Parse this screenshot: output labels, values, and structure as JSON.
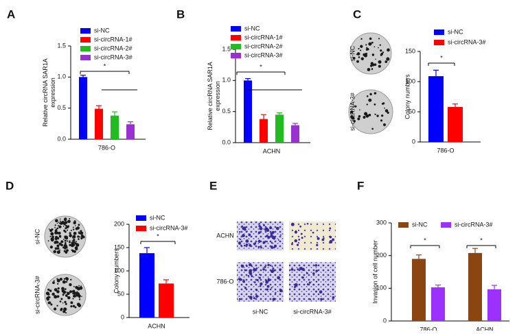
{
  "chart_data": [
    {
      "type": "bar",
      "panel": "A",
      "y_label": [
        "Relative circRNA SAR1A",
        "expression"
      ],
      "categories": [
        "786-O"
      ],
      "ylim": [
        0,
        1.5
      ],
      "yticks": [
        {
          "value": 0,
          "label": "0.0"
        },
        {
          "value": 0.5,
          "label": "0.5"
        },
        {
          "value": 1,
          "label": "1.0"
        },
        {
          "value": 1.5,
          "label": "1.5"
        }
      ],
      "series": [
        {
          "name": "si-NC",
          "color": "#0000ff",
          "values": [
            1.0
          ],
          "errors": [
            0.03
          ]
        },
        {
          "name": "si-circRNA-1#",
          "color": "#ff0000",
          "values": [
            0.49
          ],
          "errors": [
            0.05
          ]
        },
        {
          "name": "si-circRNA-2#",
          "color": "#22bb22",
          "values": [
            0.38
          ],
          "errors": [
            0.06
          ]
        },
        {
          "name": "si-circRNA-3#",
          "color": "#9b30d0",
          "values": [
            0.24
          ],
          "errors": [
            0.04
          ]
        }
      ],
      "annotations": [
        "*"
      ]
    },
    {
      "type": "bar",
      "panel": "B",
      "y_label": [
        "Relative circRNA SAR1A",
        "expression"
      ],
      "categories": [
        "ACHN"
      ],
      "ylim": [
        0,
        1.5
      ],
      "yticks": [
        {
          "value": 0,
          "label": "0.0"
        },
        {
          "value": 0.5,
          "label": "0.5"
        },
        {
          "value": 1,
          "label": "1.0"
        },
        {
          "value": 1.5,
          "label": "1.5"
        }
      ],
      "series": [
        {
          "name": "si-NC",
          "color": "#0000ff",
          "values": [
            1.0
          ],
          "errors": [
            0.03
          ]
        },
        {
          "name": "si-circRNA-1#",
          "color": "#ff0000",
          "values": [
            0.38
          ],
          "errors": [
            0.07
          ]
        },
        {
          "name": "si-circRNA-2#",
          "color": "#22bb22",
          "values": [
            0.45
          ],
          "errors": [
            0.03
          ]
        },
        {
          "name": "si-circRNA-3#",
          "color": "#9b30d0",
          "values": [
            0.28
          ],
          "errors": [
            0.03
          ]
        }
      ],
      "annotations": [
        "*"
      ]
    },
    {
      "type": "bar",
      "panel": "C",
      "y_label": [
        "Colony numbers"
      ],
      "categories": [
        "786-O"
      ],
      "image_labels": [
        "si-NC",
        "si-circRNA-3#"
      ],
      "ylim": [
        0,
        150
      ],
      "yticks": [
        0,
        50,
        100,
        150
      ],
      "series": [
        {
          "name": "si-NC",
          "color": "#0000ff",
          "values": [
            109
          ],
          "errors": [
            10
          ]
        },
        {
          "name": "si-circRNA-3#",
          "color": "#ff0000",
          "values": [
            58
          ],
          "errors": [
            5
          ]
        }
      ],
      "annotations": [
        "*"
      ]
    },
    {
      "type": "bar",
      "panel": "D",
      "y_label": [
        "Colony numbers"
      ],
      "categories": [
        "ACHN"
      ],
      "image_labels": [
        "si-NC",
        "si-circRNA-3#"
      ],
      "ylim": [
        0,
        200
      ],
      "yticks": [
        0,
        50,
        100,
        150,
        200
      ],
      "series": [
        {
          "name": "si-NC",
          "color": "#0000ff",
          "values": [
            138
          ],
          "errors": [
            12
          ]
        },
        {
          "name": "si-circRNA-3#",
          "color": "#ff0000",
          "values": [
            73
          ],
          "errors": [
            8
          ]
        }
      ],
      "annotations": [
        "*"
      ]
    },
    {
      "type": "image-grid",
      "panel": "E",
      "row_labels": [
        "ACHN",
        "786-O"
      ],
      "column_labels": [
        "si-NC",
        "si-circRNA-3#"
      ]
    },
    {
      "type": "bar",
      "panel": "F",
      "y_label": [
        "Invasion of cell number"
      ],
      "categories": [
        "786-O",
        "ACHN"
      ],
      "ylim": [
        0,
        300
      ],
      "yticks": [
        0,
        100,
        200,
        300
      ],
      "series": [
        {
          "name": "si-NC",
          "color": "#8b4513",
          "values": [
            190,
            208
          ],
          "errors": [
            12,
            14
          ]
        },
        {
          "name": "si-circRNA-3#",
          "color": "#9b30ff",
          "values": [
            103,
            97
          ],
          "errors": [
            7,
            12
          ]
        }
      ],
      "annotations": [
        "*",
        "*"
      ]
    }
  ]
}
